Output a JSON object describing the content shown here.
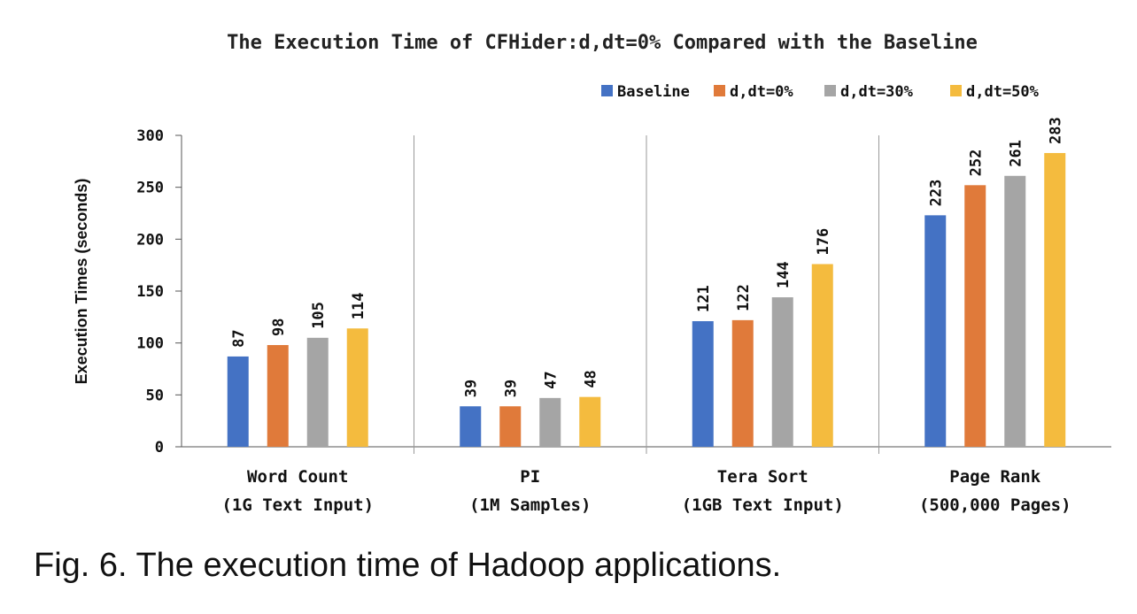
{
  "chart_data": {
    "type": "bar",
    "title": "The Execution Time of CFHider:d,dt=0% Compared with the Baseline",
    "ylabel": "Execution Times (seconds)",
    "xlabel": "",
    "ylim": [
      0,
      300
    ],
    "yticks": [
      "0",
      "50",
      "100",
      "150",
      "200",
      "250",
      "300"
    ],
    "legend_position": "top-right",
    "grid": false,
    "categories": [
      [
        "Word Count",
        "(1G Text Input)"
      ],
      [
        "PI",
        "(1M Samples)"
      ],
      [
        "Tera Sort",
        "(1GB Text Input)"
      ],
      [
        "Page Rank",
        "(500,000 Pages)"
      ]
    ],
    "series": [
      {
        "name": "Baseline",
        "color": "#4472c4",
        "values": [
          87,
          39,
          121,
          223
        ]
      },
      {
        "name": "d,dt=0%",
        "color": "#e07a3a",
        "values": [
          98,
          39,
          122,
          252
        ]
      },
      {
        "name": "d,dt=30%",
        "color": "#a5a5a5",
        "values": [
          105,
          47,
          144,
          261
        ]
      },
      {
        "name": "d,dt=50%",
        "color": "#f4bb3e",
        "values": [
          114,
          48,
          176,
          283
        ]
      }
    ]
  },
  "caption": "Fig. 6. The execution time of Hadoop applications."
}
